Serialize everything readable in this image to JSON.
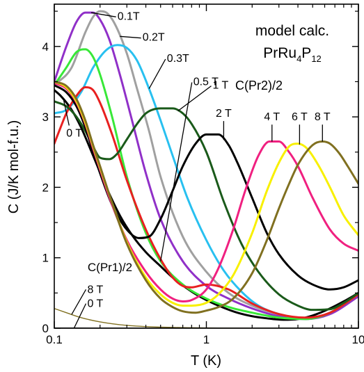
{
  "chart_data": {
    "type": "line",
    "title": "",
    "annotations": {
      "model_line1": "model calc.",
      "model_line2_base": "PrRu",
      "model_sub1": "4",
      "model_p": "P",
      "model_sub2": "12",
      "pr2_label": "C(Pr2)/2",
      "pr1_label": "C(Pr1)/2"
    },
    "xlabel": "T (K)",
    "ylabel": "C (J/K mol-f.u.)",
    "xscale": "log",
    "xlim": [
      0.1,
      10
    ],
    "ylim": [
      0,
      4.6
    ],
    "x_ticks": [
      0.1,
      1,
      10
    ],
    "x_tick_labels": [
      "0.1",
      "1",
      "10"
    ],
    "y_ticks": [
      0,
      1,
      2,
      3,
      4
    ],
    "y_tick_labels": [
      "0",
      "1",
      "2",
      "3",
      "4"
    ],
    "legend": "inline labels",
    "series": [
      {
        "name": "0 T",
        "color": "#000000",
        "x": [
          0.1,
          0.11,
          0.13,
          0.15,
          0.18,
          0.22,
          0.27,
          0.33,
          0.4,
          0.5,
          0.6,
          0.8,
          1.0,
          1.3,
          1.6,
          2,
          2.5,
          3.2,
          4,
          5,
          6.5,
          8,
          10
        ],
        "y": [
          3.38,
          3.3,
          3.1,
          2.85,
          2.45,
          2.0,
          1.6,
          1.3,
          1.08,
          0.88,
          0.72,
          0.52,
          0.4,
          0.29,
          0.22,
          0.17,
          0.14,
          0.12,
          0.13,
          0.18,
          0.28,
          0.38,
          0.5
        ]
      },
      {
        "name": "0.1T",
        "color": "#9030c8",
        "x": [
          0.1,
          0.12,
          0.14,
          0.16,
          0.18,
          0.2,
          0.23,
          0.27,
          0.32,
          0.4,
          0.5,
          0.7,
          1.0,
          1.4,
          2,
          3,
          4.5,
          6.5,
          10
        ],
        "y": [
          3.5,
          4.0,
          4.35,
          4.48,
          4.48,
          4.38,
          4.1,
          3.6,
          3.0,
          2.2,
          1.55,
          0.95,
          0.6,
          0.42,
          0.28,
          0.17,
          0.13,
          0.2,
          0.45
        ]
      },
      {
        "name": "0.2T",
        "color": "#a0a0a0",
        "x": [
          0.1,
          0.13,
          0.16,
          0.18,
          0.2,
          0.22,
          0.25,
          0.3,
          0.35,
          0.42,
          0.5,
          0.7,
          1.0,
          1.4,
          2,
          3,
          4.5,
          6.5,
          10
        ],
        "y": [
          3.45,
          3.7,
          4.2,
          4.42,
          4.5,
          4.48,
          4.32,
          3.9,
          3.4,
          2.8,
          2.15,
          1.3,
          0.8,
          0.5,
          0.32,
          0.2,
          0.14,
          0.22,
          0.48
        ]
      },
      {
        "name": "0.3T",
        "color": "#28c0f0",
        "x": [
          0.1,
          0.12,
          0.15,
          0.18,
          0.22,
          0.26,
          0.3,
          0.35,
          0.42,
          0.5,
          0.6,
          0.75,
          1.0,
          1.3,
          1.7,
          2.2,
          3,
          4.5,
          6.5,
          10
        ],
        "y": [
          3.05,
          3.1,
          3.35,
          3.7,
          3.95,
          4.02,
          3.98,
          3.8,
          3.4,
          2.95,
          2.45,
          1.85,
          1.25,
          0.82,
          0.52,
          0.32,
          0.2,
          0.14,
          0.22,
          0.48
        ]
      },
      {
        "name": "0.5 T",
        "color": "#38e838",
        "x": [
          0.1,
          0.12,
          0.14,
          0.16,
          0.18,
          0.2,
          0.24,
          0.3,
          0.4,
          0.5,
          0.7,
          1.0,
          1.4,
          2,
          3,
          4.5,
          6.5,
          10
        ],
        "y": [
          3.45,
          3.7,
          3.92,
          3.96,
          3.85,
          3.6,
          3.0,
          2.15,
          1.35,
          0.95,
          0.62,
          0.42,
          0.3,
          0.22,
          0.15,
          0.13,
          0.22,
          0.48
        ]
      },
      {
        "name": "red",
        "color": "#e82020",
        "x": [
          0.1,
          0.11,
          0.12,
          0.14,
          0.16,
          0.18,
          0.2,
          0.24,
          0.3,
          0.4,
          0.5,
          0.6,
          0.7,
          0.8,
          1.0,
          1.4,
          2,
          3,
          4.5,
          6.5,
          10
        ],
        "y": [
          2.62,
          2.85,
          3.05,
          3.3,
          3.42,
          3.38,
          3.2,
          2.75,
          2.1,
          1.4,
          0.98,
          0.72,
          0.6,
          0.58,
          0.62,
          0.55,
          0.35,
          0.2,
          0.15,
          0.22,
          0.48
        ]
      },
      {
        "name": "1 T",
        "color": "#1a5a1a",
        "x": [
          0.1,
          0.12,
          0.14,
          0.16,
          0.18,
          0.2,
          0.23,
          0.26,
          0.3,
          0.35,
          0.4,
          0.5,
          0.6,
          0.7,
          0.8,
          1.0,
          1.3,
          1.7,
          2.2,
          3,
          4,
          5,
          6.5,
          8,
          10
        ],
        "y": [
          3.22,
          3.15,
          3.0,
          2.8,
          2.58,
          2.42,
          2.4,
          2.48,
          2.68,
          2.9,
          3.05,
          3.12,
          3.12,
          3.05,
          2.9,
          2.5,
          1.8,
          1.2,
          0.8,
          0.48,
          0.32,
          0.26,
          0.27,
          0.36,
          0.5
        ]
      },
      {
        "name": "2 T",
        "color": "#000000",
        "x": [
          0.1,
          0.12,
          0.14,
          0.16,
          0.18,
          0.2,
          0.24,
          0.3,
          0.36,
          0.42,
          0.5,
          0.6,
          0.7,
          0.85,
          1.0,
          1.2,
          1.4,
          1.6,
          2.0,
          2.5,
          3,
          4,
          5,
          6.5,
          8,
          10
        ],
        "y": [
          3.45,
          3.35,
          3.15,
          2.85,
          2.5,
          2.2,
          1.75,
          1.4,
          1.28,
          1.3,
          1.55,
          1.95,
          2.3,
          2.62,
          2.75,
          2.75,
          2.6,
          2.35,
          1.85,
          1.35,
          1.05,
          0.75,
          0.62,
          0.55,
          0.58,
          0.68
        ]
      },
      {
        "name": "4 T",
        "color": "#f02080",
        "x": [
          0.1,
          0.12,
          0.14,
          0.16,
          0.18,
          0.2,
          0.24,
          0.3,
          0.4,
          0.5,
          0.6,
          0.7,
          0.8,
          1.0,
          1.2,
          1.5,
          1.8,
          2.2,
          2.6,
          3.0,
          3.5,
          4,
          5,
          6.5,
          8,
          10
        ],
        "y": [
          3.48,
          3.4,
          3.2,
          2.9,
          2.55,
          2.25,
          1.75,
          1.25,
          0.8,
          0.55,
          0.42,
          0.38,
          0.4,
          0.55,
          0.85,
          1.4,
          1.95,
          2.45,
          2.65,
          2.65,
          2.5,
          2.3,
          1.85,
          1.4,
          1.2,
          1.1
        ]
      },
      {
        "name": "6 T",
        "color": "#f8f000",
        "x": [
          0.1,
          0.12,
          0.14,
          0.16,
          0.18,
          0.2,
          0.24,
          0.3,
          0.4,
          0.5,
          0.6,
          0.7,
          0.8,
          1.0,
          1.2,
          1.5,
          2.0,
          2.5,
          3.0,
          3.5,
          4.0,
          4.6,
          5.5,
          6.5,
          8,
          10
        ],
        "y": [
          3.5,
          3.42,
          3.22,
          2.92,
          2.58,
          2.28,
          1.78,
          1.22,
          0.72,
          0.48,
          0.36,
          0.32,
          0.32,
          0.36,
          0.48,
          0.75,
          1.35,
          1.95,
          2.35,
          2.58,
          2.62,
          2.55,
          2.3,
          2.0,
          1.6,
          1.32
        ]
      },
      {
        "name": "8 T",
        "color": "#807020",
        "x": [
          0.1,
          0.12,
          0.14,
          0.16,
          0.18,
          0.2,
          0.24,
          0.3,
          0.4,
          0.5,
          0.6,
          0.7,
          0.85,
          1.0,
          1.2,
          1.5,
          2.0,
          2.5,
          3.0,
          3.5,
          4.0,
          5.0,
          5.8,
          6.5,
          7.5,
          8.5,
          10
        ],
        "y": [
          3.5,
          3.44,
          3.25,
          2.95,
          2.6,
          2.3,
          1.78,
          1.2,
          0.68,
          0.42,
          0.3,
          0.24,
          0.22,
          0.25,
          0.3,
          0.42,
          0.78,
          1.25,
          1.7,
          2.05,
          2.32,
          2.6,
          2.65,
          2.62,
          2.48,
          2.3,
          2.05
        ]
      },
      {
        "name": "C(Pr1)/2 8 T",
        "color": "#807020",
        "x": [
          0.1,
          0.12,
          0.15,
          0.2,
          0.3,
          0.5,
          0.8,
          1.2,
          2,
          4,
          10
        ],
        "y": [
          0.28,
          0.22,
          0.15,
          0.09,
          0.04,
          0.015,
          0.007,
          0.003,
          0.001,
          0.0005,
          0.0002
        ]
      },
      {
        "name": "C(Pr1)/2 0 T",
        "color": "#000000",
        "x": [
          0.1,
          0.2,
          0.5,
          1,
          3,
          10
        ],
        "y": [
          0.003,
          0.002,
          0.001,
          0.0005,
          0.0002,
          0.0001
        ]
      }
    ],
    "series_labels": [
      {
        "text": "0.1T",
        "series": 1,
        "at_x": 0.175,
        "text_x": 0.26,
        "text_y": 4.38
      },
      {
        "text": "0.2T",
        "series": 2,
        "at_x": 0.27,
        "text_x": 0.38,
        "text_y": 4.08
      },
      {
        "text": "0.3T",
        "series": 3,
        "at_x": 0.42,
        "text_x": 0.55,
        "text_y": 3.78
      },
      {
        "text": "0.5 T",
        "series": 4,
        "at_x": 0.5,
        "text_x": 0.82,
        "text_y": 3.45
      },
      {
        "text": "1 T",
        "series": 6,
        "at_x": 0.65,
        "text_x": 1.1,
        "text_y": 3.4
      },
      {
        "text": "2 T",
        "series": 7,
        "at_x": 1.3,
        "text_x": 1.3,
        "text_y": 3.0
      },
      {
        "text": "4 T",
        "series": 8,
        "at_x": 2.7,
        "text_x": 2.7,
        "text_y": 2.95
      },
      {
        "text": "6 T",
        "series": 9,
        "at_x": 4.1,
        "text_x": 4.1,
        "text_y": 2.95
      },
      {
        "text": "8 T",
        "series": 10,
        "at_x": 5.8,
        "text_x": 5.8,
        "text_y": 2.95
      },
      {
        "text": "0 T",
        "series": 0,
        "at_x": 0.115,
        "text_x": 0.12,
        "text_y": 2.72
      },
      {
        "text": "8 T",
        "series": 11,
        "at_x": 0.13,
        "text_x": 0.165,
        "text_y": 0.5
      },
      {
        "text": "0 T",
        "series": 12,
        "at_x": 0.135,
        "text_x": 0.165,
        "text_y": 0.3
      }
    ]
  }
}
